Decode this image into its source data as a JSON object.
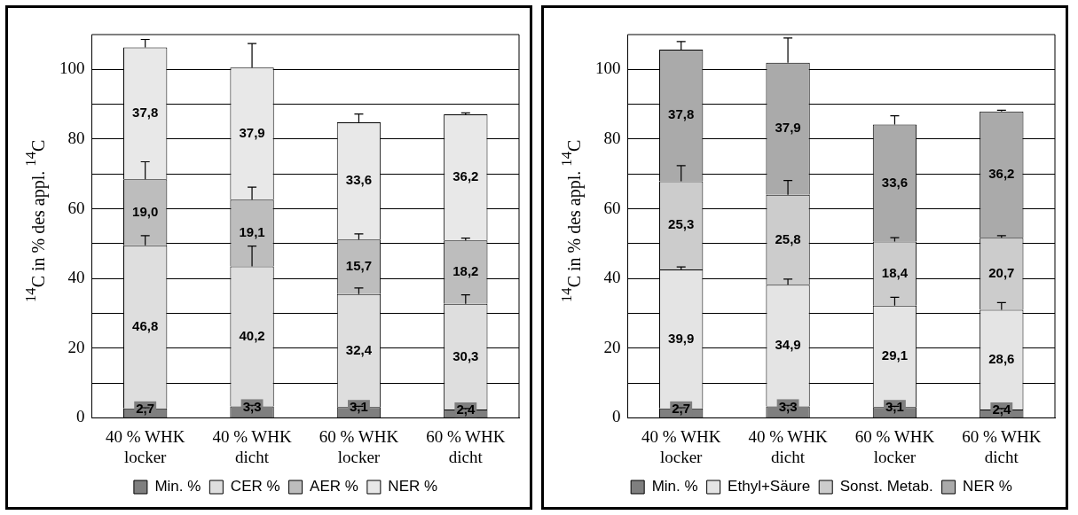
{
  "chart_data": [
    {
      "type": "bar",
      "stacked": true,
      "ylabel": "$^{14}$C in % des appl. $^{14}$C",
      "categories": [
        "40 % WHK locker",
        "40 % WHK dicht",
        "60 % WHK locker",
        "60 % WHK dicht"
      ],
      "series": [
        {
          "name": "Min. %",
          "color": "#7f7f7f",
          "values": [
            2.7,
            3.3,
            3.1,
            2.4
          ],
          "value_labels": [
            "2,7",
            "3,3",
            "3,1",
            "2,4"
          ],
          "errors": [
            [
              2.7,
              2.9
            ],
            [
              3.3,
              3.6
            ],
            [
              3.1,
              3.3
            ],
            [
              2.4,
              2.7
            ]
          ]
        },
        {
          "name": "CER %",
          "color": "#dedede",
          "values": [
            46.8,
            40.2,
            32.4,
            30.3
          ],
          "value_labels": [
            "46,8",
            "40,2",
            "32,4",
            "30,3"
          ],
          "errors": [
            [
              49.5,
              52.3
            ],
            [
              43.5,
              49.3
            ],
            [
              35.5,
              37.3
            ],
            [
              32.7,
              35.3
            ]
          ]
        },
        {
          "name": "AER %",
          "color": "#bdbdbd",
          "values": [
            19.0,
            19.1,
            15.7,
            18.2
          ],
          "value_labels": [
            "19,0",
            "19,1",
            "15,7",
            "18,2"
          ],
          "errors": [
            [
              68.5,
              73.5
            ],
            [
              62.6,
              66.2
            ],
            [
              51.2,
              52.8
            ],
            [
              50.9,
              51.6
            ]
          ]
        },
        {
          "name": "NER %",
          "color": "#e8e8e8",
          "values": [
            37.8,
            37.9,
            33.6,
            36.2
          ],
          "value_labels": [
            "37,8",
            "37,9",
            "33,6",
            "36,2"
          ],
          "errors": [
            [
              106.3,
              108.6
            ],
            [
              100.5,
              107.4
            ],
            [
              84.8,
              87.2
            ],
            [
              87.1,
              87.5
            ]
          ]
        }
      ],
      "ylim": [
        0,
        110
      ],
      "yticks": [
        0,
        {
          "value": 10,
          "label": null
        },
        20,
        {
          "value": 30,
          "label": null
        },
        40,
        {
          "value": 50,
          "label": null
        },
        60,
        {
          "value": 70,
          "label": null
        },
        80,
        {
          "value": 90,
          "label": null
        },
        100
      ],
      "grid": "y",
      "legend": "bottom"
    },
    {
      "type": "bar",
      "stacked": true,
      "ylabel": "$^{14}$C in % des appl. $^{14}$C",
      "categories": [
        "40 % WHK locker",
        "40 % WHK dicht",
        "60 % WHK locker",
        "60 % WHK dicht"
      ],
      "series": [
        {
          "name": "Min. %",
          "color": "#7f7f7f",
          "values": [
            2.7,
            3.3,
            3.1,
            2.4
          ],
          "value_labels": [
            "2,7",
            "3,3",
            "3,1",
            "2,4"
          ],
          "errors": [
            [
              2.7,
              2.9
            ],
            [
              3.3,
              3.6
            ],
            [
              3.1,
              3.3
            ],
            [
              2.4,
              2.7
            ]
          ]
        },
        {
          "name": "Ethyl+Säure",
          "color": "#e4e4e4",
          "values": [
            39.9,
            34.9,
            29.1,
            28.6
          ],
          "value_labels": [
            "39,9",
            "34,9",
            "29,1",
            "28,6"
          ],
          "errors": [
            [
              42.6,
              43.3
            ],
            [
              38.2,
              39.8
            ],
            [
              32.2,
              34.6
            ],
            [
              31.0,
              33.1
            ]
          ]
        },
        {
          "name": "Sonst. Metab.",
          "color": "#cccccc",
          "values": [
            25.3,
            25.8,
            18.4,
            20.7
          ],
          "value_labels": [
            "25,3",
            "25,8",
            "18,4",
            "20,7"
          ],
          "errors": [
            [
              67.9,
              72.4
            ],
            [
              64.0,
              68.1
            ],
            [
              50.6,
              51.7
            ],
            [
              51.7,
              52.3
            ]
          ]
        },
        {
          "name": "NER %",
          "color": "#aaaaaa",
          "values": [
            37.8,
            37.9,
            33.6,
            36.2
          ],
          "value_labels": [
            "37,8",
            "37,9",
            "33,6",
            "36,2"
          ],
          "errors": [
            [
              105.7,
              108.0
            ],
            [
              101.9,
              109.0
            ],
            [
              84.2,
              86.7
            ],
            [
              87.9,
              88.3
            ]
          ]
        }
      ],
      "ylim": [
        0,
        110
      ],
      "yticks": [
        0,
        {
          "value": 10,
          "label": null
        },
        20,
        {
          "value": 30,
          "label": null
        },
        40,
        {
          "value": 50,
          "label": null
        },
        60,
        {
          "value": 70,
          "label": null
        },
        80,
        {
          "value": 90,
          "label": null
        },
        100
      ],
      "grid": "y",
      "legend": "bottom"
    }
  ]
}
